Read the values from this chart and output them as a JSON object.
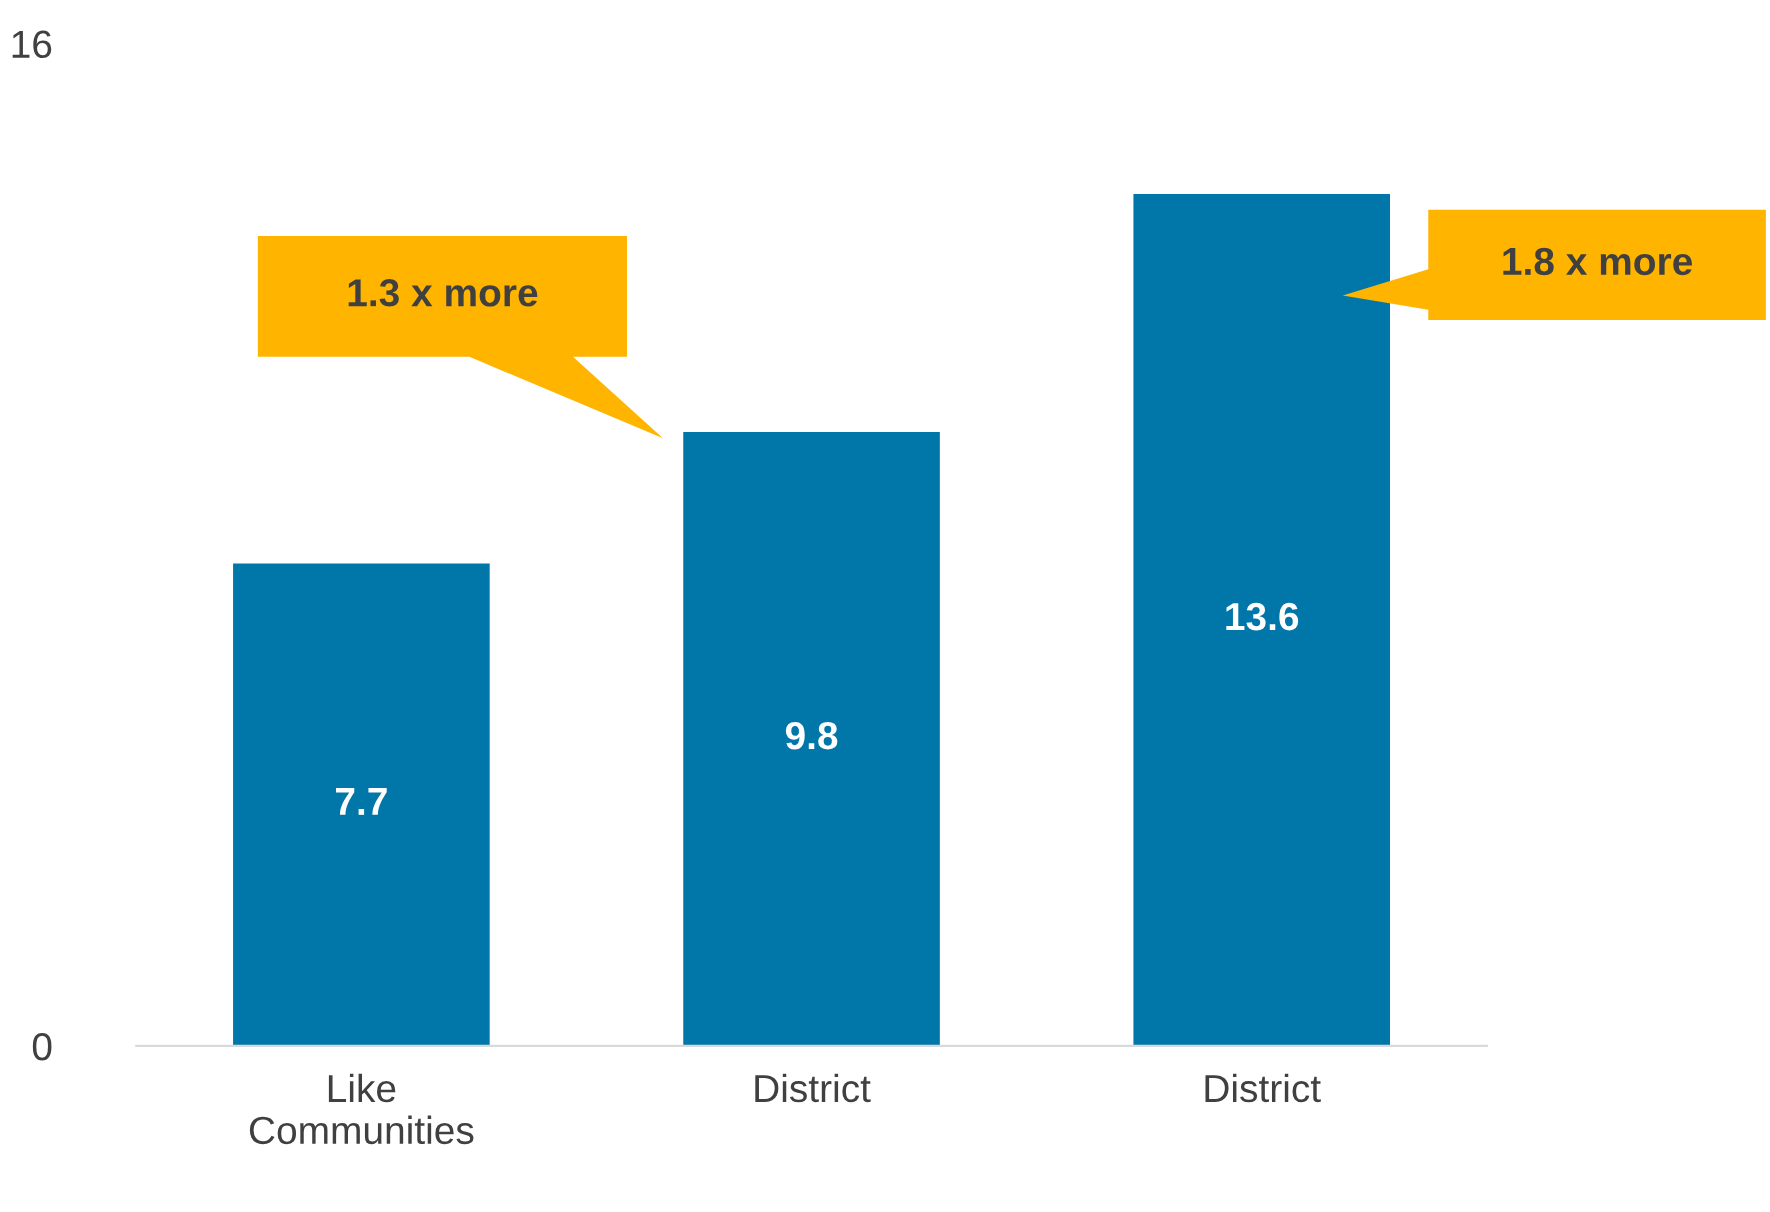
{
  "chart_data": {
    "type": "bar",
    "categories": [
      "Like\nCommunities",
      "District",
      "District"
    ],
    "values": [
      7.7,
      9.8,
      13.6
    ],
    "color": "#0077a8",
    "ylim": [
      0,
      16
    ],
    "yticks": [
      0,
      16
    ],
    "data_labels": true,
    "annotations": [
      "1.3 x more",
      "1.8 x more"
    ],
    "grid": false,
    "legend": false
  }
}
